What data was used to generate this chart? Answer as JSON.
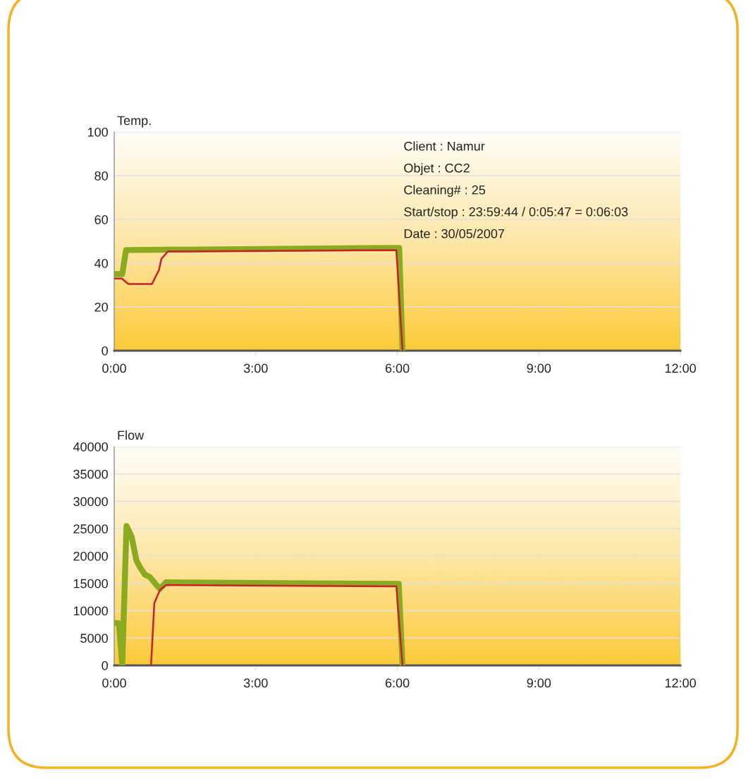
{
  "chart_data": [
    {
      "type": "line",
      "ylabel": "Temp.",
      "xlim": [
        0,
        12
      ],
      "ylim": [
        0,
        100
      ],
      "xticks": [
        {
          "value": 0,
          "label": "0:00"
        },
        {
          "value": 3,
          "label": "3:00"
        },
        {
          "value": 6,
          "label": "6:00"
        },
        {
          "value": 9,
          "label": "9:00"
        },
        {
          "value": 12,
          "label": "12:00"
        }
      ],
      "yticks": [
        0,
        20,
        40,
        60,
        80,
        100
      ],
      "grid": "y",
      "annotations": [
        "Client : Namur",
        "Objet : CC2",
        "Cleaning# : 25",
        "Start/stop : 23:59:44 / 0:05:47 = 0:06:03",
        "Date : 30/05/2007"
      ],
      "series": [
        {
          "color": "#8aab1f",
          "x": [
            0,
            0.17,
            0.25,
            6.04,
            6.11
          ],
          "values": [
            35,
            35,
            46,
            47,
            0
          ]
        },
        {
          "color": "#c8202e",
          "x": [
            0,
            0.16,
            0.3,
            0.8,
            0.95,
            1.0,
            1.14,
            5.98,
            6.11
          ],
          "values": [
            33,
            33,
            30.5,
            30.5,
            37,
            42,
            45.4,
            46,
            0
          ]
        }
      ]
    },
    {
      "type": "line",
      "ylabel": "Flow",
      "xlim": [
        0,
        12
      ],
      "ylim": [
        0,
        40000
      ],
      "xticks": [
        {
          "value": 0,
          "label": "0:00"
        },
        {
          "value": 3,
          "label": "3:00"
        },
        {
          "value": 6,
          "label": "6:00"
        },
        {
          "value": 9,
          "label": "9:00"
        },
        {
          "value": 12,
          "label": "12:00"
        }
      ],
      "yticks": [
        0,
        5000,
        10000,
        15000,
        20000,
        25000,
        30000,
        35000,
        40000
      ],
      "grid": "y",
      "series": [
        {
          "color": "#8aab1f",
          "x": [
            0,
            0.1,
            0.17,
            0.26,
            0.37,
            0.47,
            0.55,
            0.65,
            0.75,
            0.9,
            0.97,
            1.1,
            6.03,
            6.11
          ],
          "values": [
            7800,
            7700,
            0,
            25500,
            23500,
            19200,
            17900,
            16600,
            16200,
            14650,
            14000,
            15200,
            14900,
            0
          ]
        },
        {
          "color": "#c8202e",
          "x": [
            0.78,
            0.85,
            0.97,
            1.1,
            5.98,
            6.11
          ],
          "values": [
            0,
            11400,
            13800,
            14700,
            14450,
            0
          ]
        }
      ]
    }
  ]
}
